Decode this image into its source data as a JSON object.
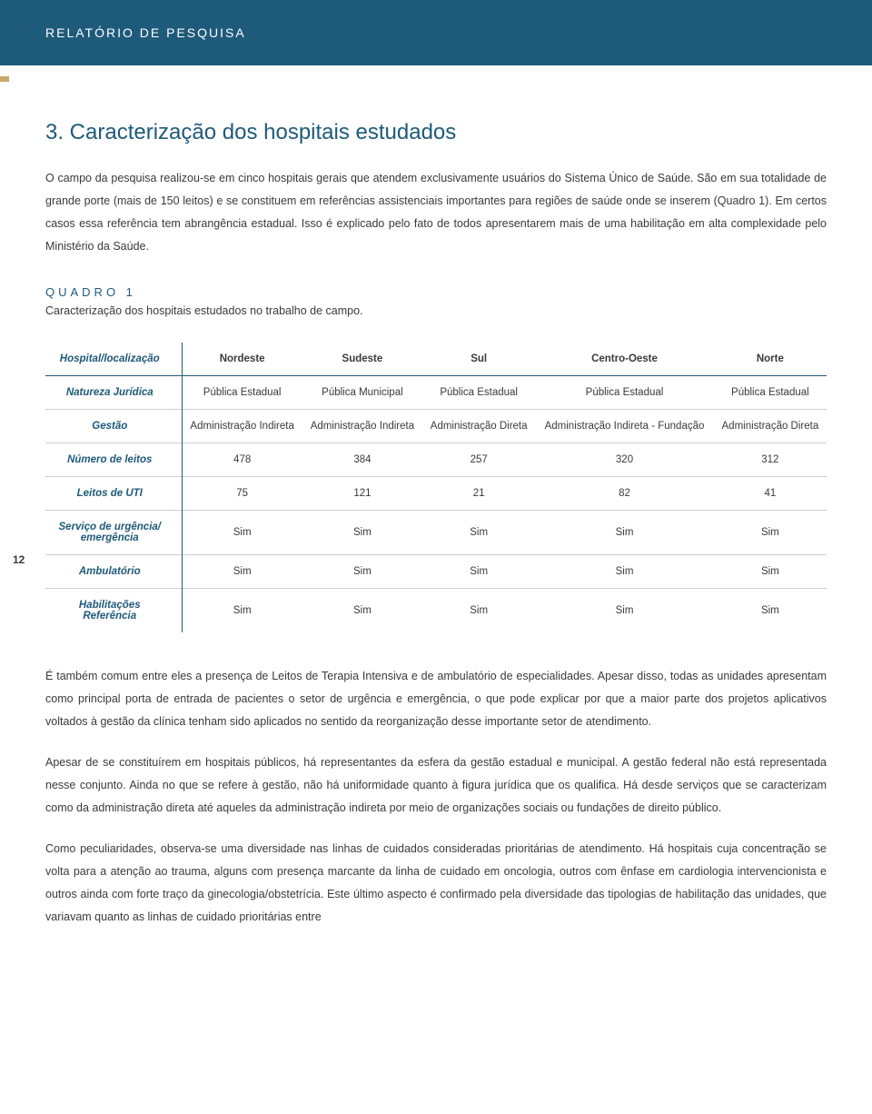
{
  "header": {
    "title": "RELATÓRIO DE PESQUISA"
  },
  "section": {
    "title": "3. Caracterização dos hospitais estudados",
    "para1": "O campo da pesquisa realizou-se em cinco hospitais gerais que atendem exclusivamente usuários do Sistema Único de Saúde. São em sua totalidade de grande porte (mais de 150 leitos) e se constituem em referências assistenciais importantes para regiões de saúde onde se inserem (Quadro 1). Em certos casos essa referência tem abrangência estadual. Isso é explicado pelo fato de todos apresentarem mais de uma habilitação em alta complexidade pelo Ministério da Saúde."
  },
  "quadro": {
    "label": "QUADRO 1",
    "caption": "Caracterização dos hospitais estudados no trabalho de campo."
  },
  "table": {
    "head": {
      "label": "Hospital/localização",
      "cols": [
        "Nordeste",
        "Sudeste",
        "Sul",
        "Centro-Oeste",
        "Norte"
      ]
    },
    "rows": [
      {
        "label": "Natureza Jurídica",
        "cells": [
          "Pública Estadual",
          "Pública Municipal",
          "Pública Estadual",
          "Pública Estadual",
          "Pública Estadual"
        ]
      },
      {
        "label": "Gestão",
        "cells": [
          "Administração Indireta",
          "Administração Indireta",
          "Administração Direta",
          "Administração Indireta - Fundação",
          "Administração Direta"
        ]
      },
      {
        "label": "Número de leitos",
        "cells": [
          "478",
          "384",
          "257",
          "320",
          "312"
        ]
      },
      {
        "label": "Leitos de UTI",
        "cells": [
          "75",
          "121",
          "21",
          "82",
          "41"
        ]
      },
      {
        "label": "Serviço de urgência/ emergência",
        "cells": [
          "Sim",
          "Sim",
          "Sim",
          "Sim",
          "Sim"
        ]
      },
      {
        "label": "Ambulatório",
        "cells": [
          "Sim",
          "Sim",
          "Sim",
          "Sim",
          "Sim"
        ]
      },
      {
        "label": "Habilitações Referência",
        "cells": [
          "Sim",
          "Sim",
          "Sim",
          "Sim",
          "Sim"
        ]
      }
    ]
  },
  "pageNumber": "12",
  "paragraphs": {
    "p2": "É também comum entre eles a presença de Leitos de Terapia Intensiva e de ambulatório de especialidades. Apesar disso, todas as unidades apresentam como principal porta de entrada de pacientes o setor de urgência e emergência, o que pode explicar por que a maior parte dos projetos aplicativos voltados à gestão da clínica tenham sido aplicados no sentido da reorganização desse importante setor de atendimento.",
    "p3": "Apesar de se constituírem em hospitais públicos, há representantes da esfera da gestão estadual e municipal. A gestão federal não está representada nesse conjunto. Ainda no que se refere à gestão, não há uniformidade quanto à figura jurídica que os qualifica. Há desde serviços que se caracterizam como da administração direta até aqueles da administração indireta por meio de organizações sociais ou fundações de direito público.",
    "p4": "Como peculiaridades, observa-se uma diversidade nas linhas de cuidados consideradas prioritárias de atendimento. Há hospitais cuja concentração se volta para a atenção ao trauma, alguns com presença marcante da linha de cuidado em oncologia, outros com ênfase em cardiologia intervencionista e outros ainda com forte traço da ginecologia/obstetrícia. Este último aspecto é confirmado pela diversidade das tipologias de habilitação das unidades, que variavam quanto as linhas de cuidado prioritárias entre"
  }
}
